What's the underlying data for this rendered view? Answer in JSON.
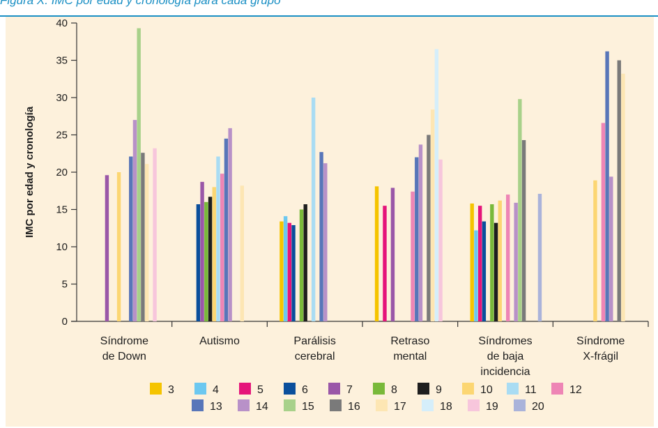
{
  "caption": "Figura X. IMC por edad y cronología para cada grupo",
  "chart_data": {
    "type": "bar",
    "title": "",
    "xlabel": "",
    "ylabel": "IMC por edad y cronología",
    "ylim": [
      0,
      40
    ],
    "yticks": [
      0,
      5,
      10,
      15,
      20,
      25,
      30,
      35,
      40
    ],
    "grid": false,
    "legend_position": "bottom",
    "categories": [
      [
        "Síndrome",
        "de Down"
      ],
      [
        "Autismo"
      ],
      [
        "Parálisis",
        "cerebral"
      ],
      [
        "Retraso",
        "mental"
      ],
      [
        "Síndromes",
        "de baja",
        "incidencia"
      ],
      [
        "Síndrome",
        "X-frágil"
      ]
    ],
    "series": [
      {
        "name": "3",
        "color": "#f5c400",
        "values": [
          null,
          null,
          13.4,
          18.1,
          15.8,
          null
        ]
      },
      {
        "name": "4",
        "color": "#6cc8f0",
        "values": [
          null,
          null,
          14.1,
          null,
          12.2,
          null
        ]
      },
      {
        "name": "5",
        "color": "#e5157a",
        "values": [
          null,
          null,
          13.2,
          15.5,
          15.5,
          null
        ]
      },
      {
        "name": "6",
        "color": "#0a4f9c",
        "values": [
          null,
          15.7,
          12.9,
          null,
          13.4,
          null
        ]
      },
      {
        "name": "7",
        "color": "#9a57a8",
        "values": [
          19.6,
          18.7,
          null,
          17.9,
          null,
          null
        ]
      },
      {
        "name": "8",
        "color": "#79b93a",
        "values": [
          null,
          16.0,
          15.0,
          null,
          15.7,
          null
        ]
      },
      {
        "name": "9",
        "color": "#1e1e1e",
        "values": [
          null,
          16.7,
          15.7,
          null,
          13.2,
          null
        ]
      },
      {
        "name": "10",
        "color": "#fcd672",
        "values": [
          20.0,
          18.0,
          null,
          null,
          16.2,
          18.9
        ]
      },
      {
        "name": "11",
        "color": "#a9dcf3",
        "values": [
          null,
          22.1,
          30.0,
          null,
          null,
          null
        ]
      },
      {
        "name": "12",
        "color": "#ee85b5",
        "values": [
          null,
          19.8,
          null,
          17.4,
          17.0,
          26.6
        ]
      },
      {
        "name": "13",
        "color": "#5876b9",
        "values": [
          22.1,
          24.5,
          22.7,
          22.0,
          null,
          36.2
        ]
      },
      {
        "name": "14",
        "color": "#b891c8",
        "values": [
          27.0,
          25.9,
          21.2,
          23.7,
          15.9,
          19.4
        ]
      },
      {
        "name": "15",
        "color": "#a8d18a",
        "values": [
          39.3,
          null,
          null,
          null,
          29.8,
          null
        ]
      },
      {
        "name": "16",
        "color": "#7a7a7a",
        "values": [
          22.6,
          null,
          null,
          25.0,
          24.3,
          35.0
        ]
      },
      {
        "name": "17",
        "color": "#fde6b3",
        "values": [
          21.1,
          18.2,
          null,
          28.4,
          null,
          33.2
        ]
      },
      {
        "name": "18",
        "color": "#d5eefa",
        "values": [
          null,
          null,
          null,
          36.5,
          null,
          null
        ]
      },
      {
        "name": "19",
        "color": "#f7c6dc",
        "values": [
          23.2,
          null,
          null,
          21.7,
          null,
          null
        ]
      },
      {
        "name": "20",
        "color": "#aab3da",
        "values": [
          null,
          null,
          null,
          null,
          17.1,
          null
        ]
      }
    ]
  }
}
